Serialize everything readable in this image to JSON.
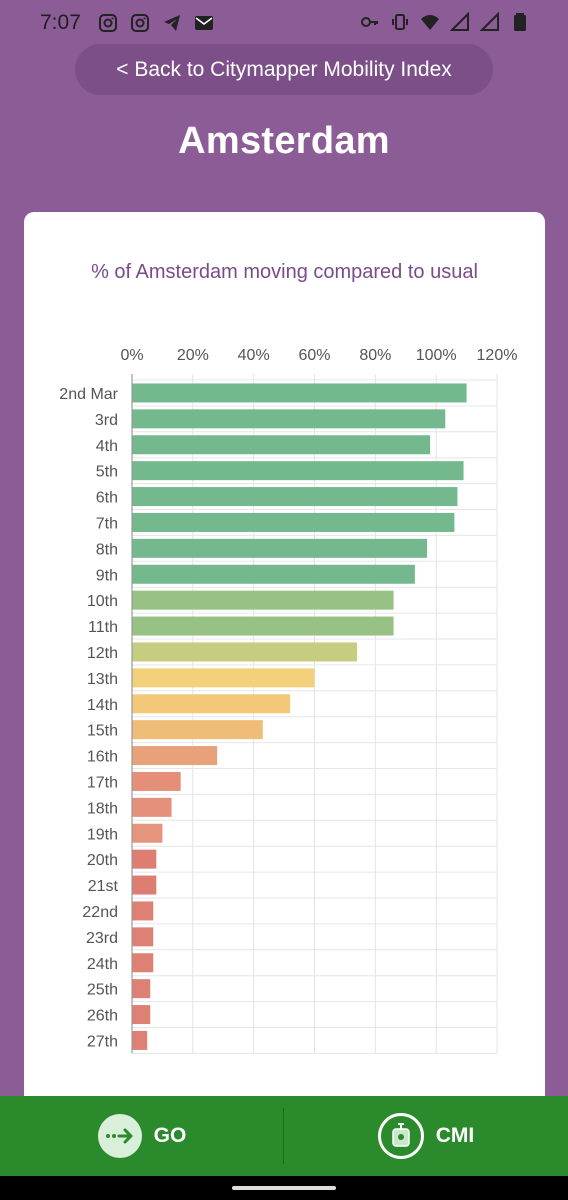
{
  "status": {
    "time": "7:07",
    "left_icons": [
      "instagram-icon",
      "instagram-icon",
      "telegram-icon",
      "mail-icon"
    ],
    "right_icons": [
      "key-icon",
      "vibrate-icon",
      "wifi-icon",
      "signal-icon",
      "signal-icon",
      "battery-icon"
    ]
  },
  "header": {
    "back_label": "< Back to Citymapper Mobility Index",
    "city": "Amsterdam"
  },
  "chart_data": {
    "type": "bar",
    "orientation": "horizontal",
    "title": "% of Amsterdam moving compared to usual",
    "xlim": [
      0,
      120
    ],
    "xticks": [
      "0%",
      "20%",
      "40%",
      "60%",
      "80%",
      "100%",
      "120%"
    ],
    "tick_values": [
      0,
      20,
      40,
      60,
      80,
      100,
      120
    ],
    "grid": true,
    "categories": [
      "2nd Mar",
      "3rd",
      "4th",
      "5th",
      "6th",
      "7th",
      "8th",
      "9th",
      "10th",
      "11th",
      "12th",
      "13th",
      "14th",
      "15th",
      "16th",
      "17th",
      "18th",
      "19th",
      "20th",
      "21st",
      "22nd",
      "23rd",
      "24th",
      "25th",
      "26th",
      "27th"
    ],
    "values": [
      110,
      103,
      98,
      109,
      107,
      106,
      97,
      93,
      86,
      86,
      74,
      60,
      52,
      43,
      28,
      16,
      13,
      10,
      8,
      8,
      7,
      7,
      7,
      6,
      6,
      5
    ],
    "colors": [
      "#74b98d",
      "#74b98d",
      "#74b98d",
      "#74b98d",
      "#74b98d",
      "#74b98d",
      "#74b98d",
      "#74b98d",
      "#98c285",
      "#98c285",
      "#c6cd80",
      "#f3d07a",
      "#f3c879",
      "#f0bd78",
      "#e9a17a",
      "#e58f7a",
      "#e5907b",
      "#e5957d",
      "#de7e73",
      "#de7e73",
      "#de8175",
      "#de8175",
      "#de8175",
      "#de8175",
      "#de8175",
      "#de8175"
    ]
  },
  "bottom_nav": {
    "go_label": "GO",
    "cmi_label": "CMI"
  }
}
